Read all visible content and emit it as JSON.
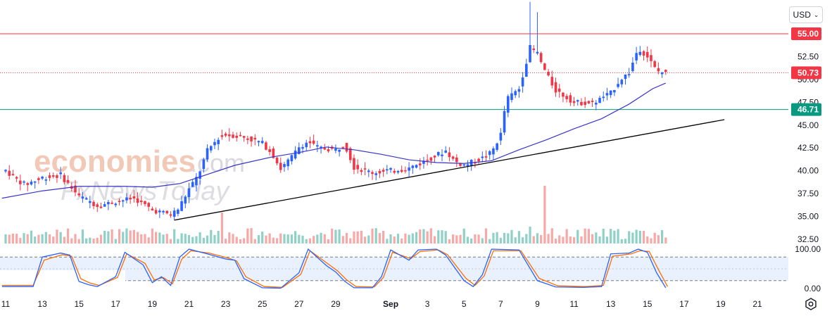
{
  "chart_data": {
    "type": "candlestick",
    "currency": "USD",
    "watermark": [
      "economies",
      ".com",
      "FxNewsToday"
    ],
    "price_axis": {
      "ticks": [
        "55.00",
        "52.50",
        "50.00",
        "47.50",
        "45.00",
        "42.50",
        "40.00",
        "37.50",
        "35.00",
        "32.50"
      ],
      "tick_values": [
        55,
        52.5,
        50,
        47.5,
        45,
        42.5,
        40,
        37.5,
        35,
        32.5
      ],
      "ylim": [
        32.2,
        57.0
      ]
    },
    "time_axis": {
      "ticks": [
        "11",
        "13",
        "15",
        "17",
        "19",
        "21",
        "23",
        "25",
        "27",
        "29",
        "Sep",
        "3",
        "5",
        "7",
        "9",
        "11",
        "13",
        "15",
        "17",
        "19",
        "21"
      ],
      "tick_days": [
        0,
        2,
        4,
        6,
        8,
        10,
        12,
        14,
        16,
        18,
        21,
        23,
        25,
        27,
        29,
        31,
        33,
        35,
        37,
        39,
        41
      ]
    },
    "levels": [
      {
        "label": "55.00",
        "value": 55.0,
        "color": "#f23645",
        "style": "solid"
      },
      {
        "label": "50.73",
        "value": 50.73,
        "color": "#f23645",
        "style": "dotted"
      },
      {
        "label": "46.71",
        "value": 46.71,
        "color": "#089981",
        "style": "solid"
      }
    ],
    "trendline": {
      "from": {
        "day": 9.2,
        "price": 34.6
      },
      "to": {
        "day": 39.2,
        "price": 45.6
      },
      "color": "#000000"
    },
    "moving_average": {
      "color": "#3a35c8",
      "points": [
        [
          -0.2,
          37.0
        ],
        [
          2.0,
          37.8
        ],
        [
          4.0,
          38.3
        ],
        [
          6.5,
          38.3
        ],
        [
          8.0,
          38.2
        ],
        [
          9.5,
          38.6
        ],
        [
          11.0,
          39.6
        ],
        [
          12.5,
          40.6
        ],
        [
          14.5,
          41.5
        ],
        [
          16.0,
          42.0
        ],
        [
          17.5,
          42.6
        ],
        [
          19.0,
          42.3
        ],
        [
          20.5,
          41.8
        ],
        [
          22.0,
          41.2
        ],
        [
          23.5,
          40.9
        ],
        [
          25.0,
          40.8
        ],
        [
          26.5,
          41.1
        ],
        [
          28.0,
          42.3
        ],
        [
          29.5,
          43.4
        ],
        [
          31.0,
          44.6
        ],
        [
          32.5,
          45.7
        ],
        [
          34.0,
          47.3
        ],
        [
          35.3,
          49.0
        ],
        [
          36.0,
          49.6
        ]
      ]
    },
    "stochastic": {
      "ticks": [
        "100.00",
        "0.00"
      ],
      "bands": [
        80,
        20
      ],
      "k_color": "#2962ff",
      "d_color": "#ff6d00",
      "k": [
        [
          -0.2,
          5
        ],
        [
          1.5,
          5
        ],
        [
          2.0,
          80
        ],
        [
          3.0,
          90
        ],
        [
          3.5,
          85
        ],
        [
          4.0,
          18
        ],
        [
          4.5,
          10
        ],
        [
          5.0,
          5
        ],
        [
          6.0,
          30
        ],
        [
          6.5,
          92
        ],
        [
          7.5,
          60
        ],
        [
          8.0,
          15
        ],
        [
          8.5,
          30
        ],
        [
          9.0,
          8
        ],
        [
          9.5,
          80
        ],
        [
          10.0,
          100
        ],
        [
          11.0,
          88
        ],
        [
          12.0,
          75
        ],
        [
          12.5,
          72
        ],
        [
          13.0,
          25
        ],
        [
          14.0,
          2
        ],
        [
          15.0,
          1
        ],
        [
          16.0,
          40
        ],
        [
          16.5,
          100
        ],
        [
          17.5,
          58
        ],
        [
          18.0,
          42
        ],
        [
          18.5,
          18
        ],
        [
          19.0,
          2
        ],
        [
          20.0,
          2
        ],
        [
          20.5,
          30
        ],
        [
          21.0,
          98
        ],
        [
          22.0,
          72
        ],
        [
          22.5,
          98
        ],
        [
          23.5,
          100
        ],
        [
          24.0,
          85
        ],
        [
          25.0,
          20
        ],
        [
          25.5,
          5
        ],
        [
          26.0,
          35
        ],
        [
          26.5,
          100
        ],
        [
          28.0,
          98
        ],
        [
          29.0,
          20
        ],
        [
          30.0,
          4
        ],
        [
          31.5,
          3
        ],
        [
          32.5,
          5
        ],
        [
          33.0,
          88
        ],
        [
          34.0,
          90
        ],
        [
          34.5,
          100
        ],
        [
          35.0,
          92
        ],
        [
          35.5,
          40
        ],
        [
          36.0,
          2
        ]
      ],
      "d": [
        [
          -0.2,
          8
        ],
        [
          1.5,
          8
        ],
        [
          2.1,
          72
        ],
        [
          3.1,
          86
        ],
        [
          3.6,
          82
        ],
        [
          4.1,
          25
        ],
        [
          4.6,
          14
        ],
        [
          5.1,
          8
        ],
        [
          6.1,
          28
        ],
        [
          6.6,
          88
        ],
        [
          7.6,
          64
        ],
        [
          8.1,
          22
        ],
        [
          8.6,
          28
        ],
        [
          9.1,
          12
        ],
        [
          9.6,
          74
        ],
        [
          10.1,
          96
        ],
        [
          11.1,
          90
        ],
        [
          12.1,
          78
        ],
        [
          12.6,
          70
        ],
        [
          13.1,
          30
        ],
        [
          14.1,
          5
        ],
        [
          15.1,
          3
        ],
        [
          16.1,
          36
        ],
        [
          16.6,
          96
        ],
        [
          17.6,
          62
        ],
        [
          18.1,
          45
        ],
        [
          18.6,
          22
        ],
        [
          19.1,
          5
        ],
        [
          20.1,
          4
        ],
        [
          20.6,
          28
        ],
        [
          21.1,
          92
        ],
        [
          22.1,
          76
        ],
        [
          22.6,
          94
        ],
        [
          23.6,
          98
        ],
        [
          24.1,
          86
        ],
        [
          25.1,
          26
        ],
        [
          25.6,
          8
        ],
        [
          26.1,
          32
        ],
        [
          26.6,
          96
        ],
        [
          28.1,
          96
        ],
        [
          29.1,
          26
        ],
        [
          30.1,
          7
        ],
        [
          31.6,
          5
        ],
        [
          32.6,
          8
        ],
        [
          33.1,
          82
        ],
        [
          34.1,
          88
        ],
        [
          34.6,
          96
        ],
        [
          35.1,
          94
        ],
        [
          35.6,
          48
        ],
        [
          36.1,
          5
        ]
      ]
    },
    "grid": false,
    "legend": "none"
  }
}
